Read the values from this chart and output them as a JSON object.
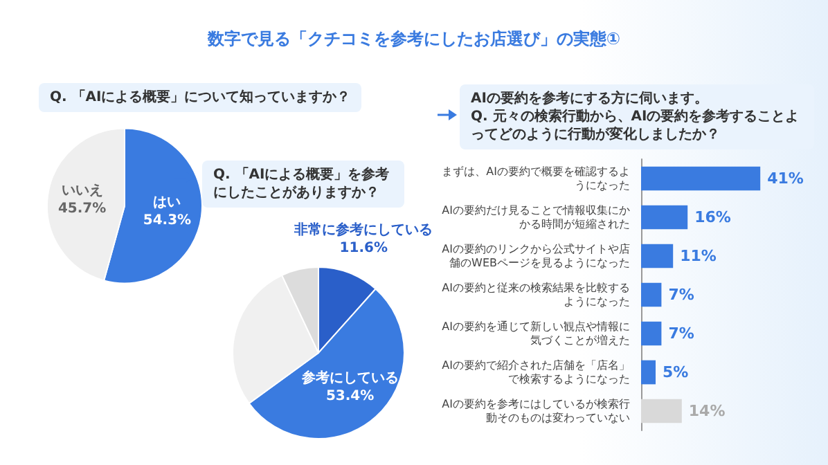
{
  "chart_data": [
    {
      "type": "pie",
      "title": "数字で見る「クチコミを参考にしたお店選び」の実態①",
      "subtitle": "Q. 「AIによる概要」について知っていますか？",
      "categories": [
        "はい",
        "いいえ"
      ],
      "values": [
        54.3,
        45.7
      ],
      "colors": [
        "#3a7be0",
        "#efefef"
      ],
      "value_labels": [
        "54.3%",
        "45.7%"
      ]
    },
    {
      "type": "pie",
      "title": "Q. 「AIによる概要」を参考にしたことがありますか？",
      "categories": [
        "非常に参考にしている",
        "参考にしている",
        null,
        null
      ],
      "values": [
        11.6,
        53.4,
        28.0,
        7.0
      ],
      "colors": [
        "#2a5fc9",
        "#3a7be0",
        "#f0f0f0",
        "#dcdcdc"
      ],
      "value_labels": [
        "11.6%",
        "53.4%",
        null,
        null
      ]
    },
    {
      "type": "bar",
      "orientation": "horizontal",
      "subtitle": "AIの要約を参考にする方に伺います。",
      "title": "Q. 元々の検索行動から、AIの要約を参考することよってどのように行動が変化しましたか？",
      "categories": [
        "まずは、AIの要約で概要を確認するようになった",
        "AIの要約だけ見ることで情報収集にかかる時間が短縮された",
        "AIの要約のリンクから公式サイトや店舗のWEBページを見るようになった",
        "AIの要約と従来の検索結果を比較するようになった",
        "AIの要約を通じて新しい観点や情報に気づくことが増えた",
        "AIの要約で紹介された店舗を「店名」で検索するようになった",
        "AIの要約を参考にはしているが検索行動そのものは変わっていない"
      ],
      "values": [
        41,
        16,
        11,
        7,
        7,
        5,
        14
      ],
      "colors": [
        "#3a7be0",
        "#3a7be0",
        "#3a7be0",
        "#3a7be0",
        "#3a7be0",
        "#3a7be0",
        "#d9d9d9"
      ],
      "value_labels": [
        "41%",
        "16%",
        "11%",
        "7%",
        "7%",
        "5%",
        "14%"
      ]
    }
  ]
}
